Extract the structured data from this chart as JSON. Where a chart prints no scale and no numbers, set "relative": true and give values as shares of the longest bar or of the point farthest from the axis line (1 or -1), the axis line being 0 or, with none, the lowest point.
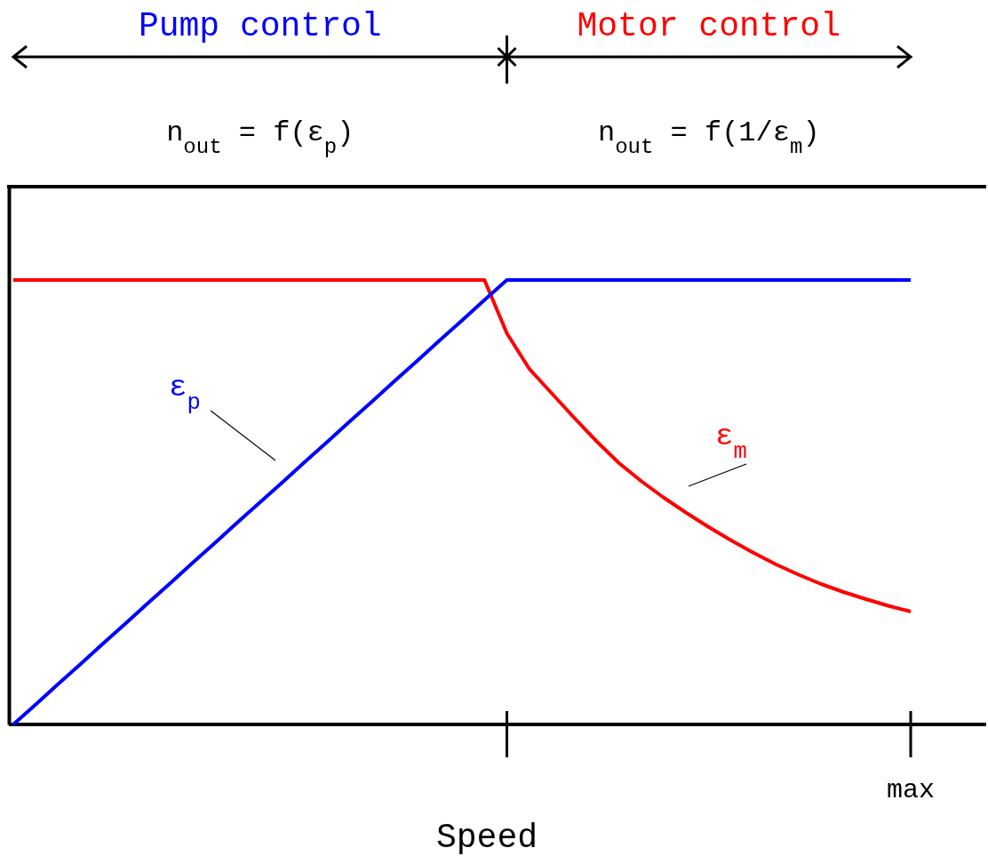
{
  "chart_data": {
    "type": "line",
    "relative": true,
    "xlabel": "Speed",
    "annotations": [
      "Pump control",
      "Motor control",
      "n$_{out}$ = f(ε$_{p}$)",
      "n$_{out}$ = f(1/ε$_{m}$)",
      "max"
    ],
    "categories": [
      null,
      null,
      null,
      null,
      null,
      null,
      null,
      null,
      null,
      null,
      null,
      null,
      null,
      null,
      null,
      null,
      null,
      null,
      null,
      null,
      null,
      null,
      null,
      null,
      null,
      null,
      null,
      null,
      null,
      null,
      null,
      null,
      null,
      null,
      null,
      null,
      null,
      null,
      null,
      null,
      null
    ],
    "series": [
      {
        "name": "ε$_{p}$",
        "color": "#0000ff",
        "values": [
          0,
          0.045,
          0.091,
          0.136,
          0.182,
          0.227,
          0.273,
          0.318,
          0.364,
          0.409,
          0.455,
          0.5,
          0.545,
          0.591,
          0.636,
          0.682,
          0.727,
          0.773,
          0.818,
          0.864,
          0.909,
          0.955,
          1,
          1,
          1,
          1,
          1,
          1,
          1,
          1,
          1,
          1,
          1,
          1,
          1,
          1,
          1,
          1,
          1,
          1,
          1
        ]
      },
      {
        "name": "ε$_{m}$",
        "color": "#ff0000",
        "values": [
          1,
          1,
          1,
          1,
          1,
          1,
          1,
          1,
          1,
          1,
          1,
          1,
          1,
          1,
          1,
          1,
          1,
          1,
          1,
          1,
          1,
          1,
          0.88,
          0.8,
          0.745,
          0.69,
          0.637,
          0.588,
          0.547,
          0.51,
          0.476,
          0.444,
          0.414,
          0.386,
          0.36,
          0.337,
          0.316,
          0.298,
          0.282,
          0.267,
          0.254
        ]
      }
    ],
    "legend": false,
    "grid": false,
    "marker": "none",
    "line_style": "solid"
  }
}
